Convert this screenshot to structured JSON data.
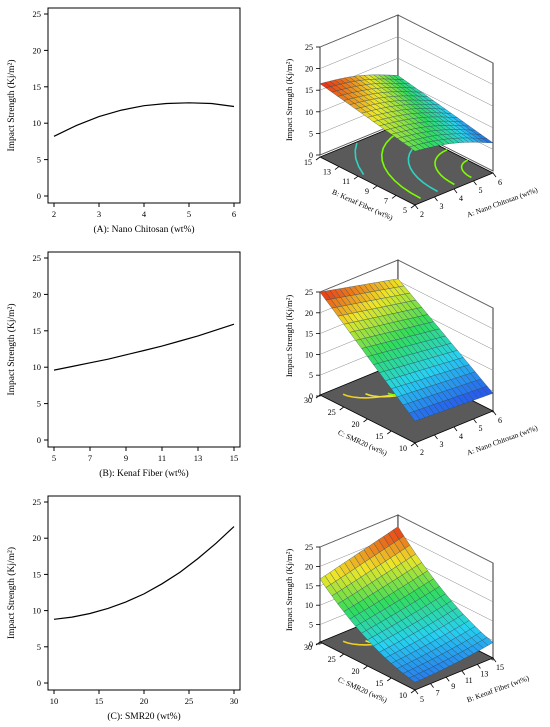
{
  "chart_data": [
    {
      "id": "a",
      "type": "line",
      "xlabel": "(A): Nano Chitosan (wt%)",
      "ylabel": "Impact Strength (Kj/m²)",
      "xlim": [
        2,
        6
      ],
      "ylim": [
        0,
        25
      ],
      "xticks": [
        "2",
        "3",
        "4",
        "5",
        "6"
      ],
      "yticks": [
        "0",
        "5",
        "10",
        "15",
        "20",
        "25"
      ],
      "x": [
        2,
        2.5,
        3,
        3.5,
        4,
        4.5,
        5,
        5.5,
        6
      ],
      "y": [
        8.2,
        9.7,
        10.9,
        11.8,
        12.4,
        12.7,
        12.8,
        12.7,
        12.3
      ]
    },
    {
      "id": "b",
      "type": "line",
      "xlabel": "(B): Kenaf Fiber (wt%)",
      "ylabel": "Impact Strength (Kj/m²)",
      "xlim": [
        5,
        15
      ],
      "ylim": [
        0,
        25
      ],
      "xticks": [
        "5",
        "7",
        "9",
        "11",
        "13",
        "15"
      ],
      "yticks": [
        "0",
        "5",
        "10",
        "15",
        "20",
        "25"
      ],
      "x": [
        5,
        6,
        7,
        8,
        9,
        10,
        11,
        12,
        13,
        14,
        15
      ],
      "y": [
        9.6,
        10.1,
        10.6,
        11.1,
        11.7,
        12.3,
        12.9,
        13.6,
        14.3,
        15.1,
        15.9
      ]
    },
    {
      "id": "c",
      "type": "line",
      "xlabel": "(C): SMR20 (wt%)",
      "ylabel": "Impact Strength (Kj/m²)",
      "xlim": [
        10,
        30
      ],
      "ylim": [
        0,
        25
      ],
      "xticks": [
        "10",
        "15",
        "20",
        "25",
        "30"
      ],
      "yticks": [
        "0",
        "5",
        "10",
        "15",
        "20",
        "25"
      ],
      "x": [
        10,
        12,
        14,
        16,
        18,
        20,
        22,
        24,
        26,
        28,
        30
      ],
      "y": [
        8.8,
        9.1,
        9.6,
        10.3,
        11.2,
        12.3,
        13.7,
        15.3,
        17.2,
        19.3,
        21.6
      ]
    },
    {
      "id": "d",
      "type": "surface",
      "zlabel": "Impact Strength (Kj/m²)",
      "xlabel": "A: Nano Chitosan (wt%)",
      "ylabel": "B: Kenaf Fiber (wt%)",
      "xticks": [
        "2",
        "3",
        "4",
        "5",
        "6"
      ],
      "yticks": [
        "5",
        "7",
        "9",
        "11",
        "13",
        "15"
      ],
      "zticks": [
        "0",
        "5",
        "10",
        "15",
        "20",
        "25"
      ],
      "xlim": [
        2,
        6
      ],
      "ylim": [
        5,
        15
      ],
      "zlim": [
        0,
        25
      ],
      "grid": "on",
      "surface_z_range": [
        6.5,
        16.5
      ]
    },
    {
      "id": "e",
      "type": "surface",
      "zlabel": "Impact Strength (Kj/m²)",
      "xlabel": "A: Nano Chitosan (wt%)",
      "ylabel": "C: SMR20 (wt%)",
      "xticks": [
        "2",
        "3",
        "4",
        "5",
        "6"
      ],
      "yticks": [
        "10",
        "15",
        "20",
        "25",
        "30"
      ],
      "zticks": [
        "0",
        "5",
        "10",
        "15",
        "20",
        "25"
      ],
      "xlim": [
        2,
        6
      ],
      "ylim": [
        10,
        30
      ],
      "zlim": [
        0,
        25
      ],
      "grid": "on",
      "surface_z_range": [
        5,
        25
      ]
    },
    {
      "id": "f",
      "type": "surface",
      "zlabel": "Impact Strength (Kj/m²)",
      "xlabel": "B: Kenaf Fiber (wt%)",
      "ylabel": "C: SMR20 (wt%)",
      "xticks": [
        "5",
        "7",
        "9",
        "11",
        "13",
        "15"
      ],
      "yticks": [
        "10",
        "15",
        "20",
        "25",
        "30"
      ],
      "zticks": [
        "0",
        "5",
        "10",
        "15",
        "20",
        "25"
      ],
      "xlim": [
        5,
        15
      ],
      "ylim": [
        10,
        30
      ],
      "zlim": [
        0,
        25
      ],
      "grid": "on",
      "surface_z_range": [
        1,
        22
      ]
    }
  ]
}
